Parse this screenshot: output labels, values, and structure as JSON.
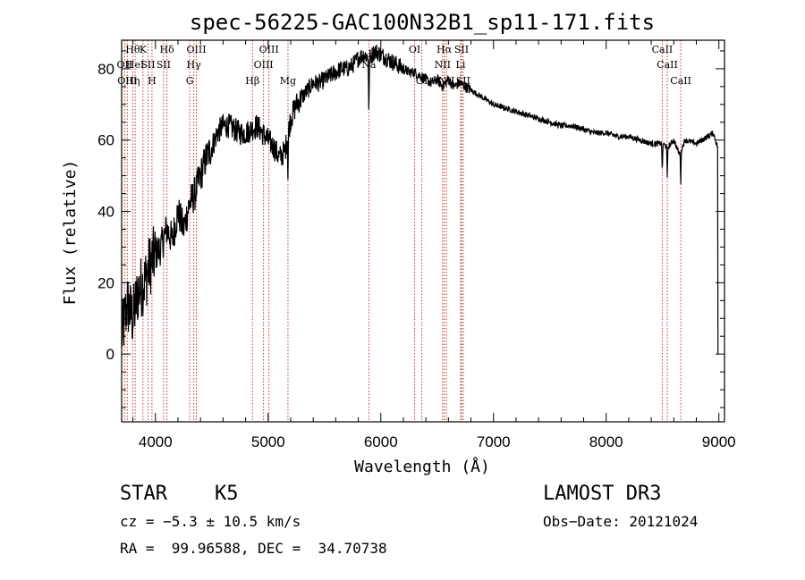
{
  "chart_data": {
    "type": "line",
    "title": "spec-56225-GAC100N32B1_sp11-171.fits",
    "xlabel": "Wavelength (Å)",
    "ylabel": "Flux (relative)",
    "xlim": [
      3700,
      9050
    ],
    "ylim": [
      -19,
      88
    ],
    "xticks": [
      4000,
      5000,
      6000,
      7000,
      8000,
      9000
    ],
    "yticks": [
      0,
      20,
      40,
      60,
      80
    ],
    "series": [
      {
        "name": "flux",
        "x": [
          3700,
          3750,
          3800,
          3850,
          3900,
          3950,
          4000,
          4050,
          4100,
          4150,
          4200,
          4250,
          4300,
          4350,
          4400,
          4450,
          4500,
          4550,
          4600,
          4650,
          4700,
          4750,
          4800,
          4850,
          4900,
          4950,
          5000,
          5050,
          5100,
          5150,
          5200,
          5250,
          5300,
          5350,
          5400,
          5450,
          5500,
          5550,
          5600,
          5650,
          5700,
          5750,
          5800,
          5850,
          5900,
          5950,
          6000,
          6050,
          6100,
          6150,
          6200,
          6250,
          6300,
          6350,
          6400,
          6450,
          6500,
          6550,
          6600,
          6650,
          6700,
          6750,
          6800,
          6850,
          6900,
          6950,
          7000,
          7100,
          7200,
          7300,
          7400,
          7500,
          7600,
          7700,
          7800,
          7900,
          8000,
          8100,
          8200,
          8300,
          8400,
          8500,
          8550,
          8600,
          8650,
          8700,
          8800,
          8900,
          8950,
          8990,
          9000
        ],
        "values": [
          5,
          14,
          10,
          18,
          20,
          25,
          28,
          30,
          35,
          32,
          40,
          35,
          42,
          45,
          50,
          55,
          58,
          62,
          64,
          64,
          63,
          62,
          62,
          63,
          64,
          62,
          60,
          58,
          55,
          57,
          66,
          70,
          72,
          74,
          76,
          76,
          77,
          78,
          79,
          80,
          80,
          81,
          83,
          84,
          83,
          85,
          84,
          83,
          82,
          81,
          80,
          79,
          79,
          78,
          77,
          76,
          77,
          75,
          77,
          75,
          76,
          75,
          74,
          73,
          72,
          71,
          70,
          69,
          68,
          67,
          66,
          65,
          64,
          64,
          63,
          62,
          62,
          61,
          61,
          60,
          59,
          59,
          58,
          60,
          56,
          60,
          59,
          61,
          62,
          58,
          0
        ]
      }
    ],
    "lines": [
      {
        "wl": 3727,
        "labels": [
          "OII"
        ],
        "rows": [
          1
        ]
      },
      {
        "wl": 3750,
        "labels": [
          "OIII"
        ],
        "rows": [
          2
        ]
      },
      {
        "wl": 3798,
        "labels": [
          "Hθ",
          "Hη"
        ],
        "rows": [
          0,
          2
        ]
      },
      {
        "wl": 3820,
        "labels": [
          "HeI"
        ],
        "rows": [
          1
        ]
      },
      {
        "wl": 3889,
        "labels": [
          "K"
        ],
        "rows": [
          0
        ]
      },
      {
        "wl": 3934,
        "labels": [
          "SII"
        ],
        "rows": [
          1
        ]
      },
      {
        "wl": 3969,
        "labels": [
          "H"
        ],
        "rows": [
          2
        ]
      },
      {
        "wl": 4102,
        "labels": [
          "Hδ"
        ],
        "rows": [
          0
        ]
      },
      {
        "wl": 4072,
        "labels": [
          "SII"
        ],
        "rows": [
          1
        ]
      },
      {
        "wl": 4304,
        "labels": [
          "G"
        ],
        "rows": [
          2
        ]
      },
      {
        "wl": 4340,
        "labels": [
          "Hγ"
        ],
        "rows": [
          1
        ]
      },
      {
        "wl": 4363,
        "labels": [
          "OIII"
        ],
        "rows": [
          0
        ]
      },
      {
        "wl": 4861,
        "labels": [
          "Hβ"
        ],
        "rows": [
          2
        ]
      },
      {
        "wl": 4959,
        "labels": [
          "OIII"
        ],
        "rows": [
          1
        ]
      },
      {
        "wl": 5007,
        "labels": [
          "OIII"
        ],
        "rows": [
          0
        ]
      },
      {
        "wl": 5176,
        "labels": [
          "Mg"
        ],
        "rows": [
          2
        ]
      },
      {
        "wl": 5894,
        "labels": [
          "Na"
        ],
        "rows": [
          1
        ]
      },
      {
        "wl": 6300,
        "labels": [
          "OI"
        ],
        "rows": [
          0
        ]
      },
      {
        "wl": 6364,
        "labels": [
          "OI"
        ],
        "rows": [
          2
        ]
      },
      {
        "wl": 6548,
        "labels": [
          "NII"
        ],
        "rows": [
          1
        ]
      },
      {
        "wl": 6563,
        "labels": [
          "Hα"
        ],
        "rows": [
          0
        ]
      },
      {
        "wl": 6583,
        "labels": [
          "NII"
        ],
        "rows": [
          2
        ]
      },
      {
        "wl": 6708,
        "labels": [
          "Li"
        ],
        "rows": [
          1
        ]
      },
      {
        "wl": 6716,
        "labels": [
          "SII"
        ],
        "rows": [
          0
        ]
      },
      {
        "wl": 6731,
        "labels": [
          "SII"
        ],
        "rows": [
          2
        ]
      },
      {
        "wl": 8498,
        "labels": [
          "CaII"
        ],
        "rows": [
          0
        ]
      },
      {
        "wl": 8542,
        "labels": [
          "CaII"
        ],
        "rows": [
          1
        ]
      },
      {
        "wl": 8662,
        "labels": [
          "CaII"
        ],
        "rows": [
          2
        ]
      }
    ]
  },
  "info": {
    "class": "STAR    K5",
    "survey": "LAMOST DR3",
    "cz": "cz = −5.3 ± 10.5 km/s",
    "obs_date": "Obs−Date: 20121024",
    "radec": "RA =  99.96588, DEC =  34.70738"
  }
}
